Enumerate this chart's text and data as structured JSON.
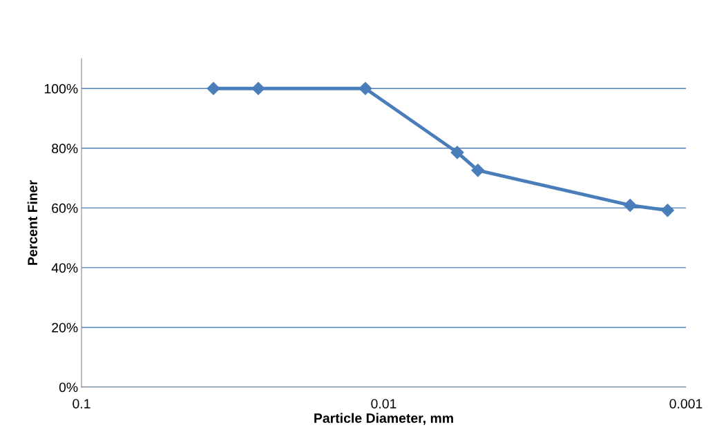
{
  "chart_data": {
    "type": "line",
    "xlabel": "Particle Diameter, mm",
    "ylabel": "Percent Finer",
    "x": [
      0.0366,
      0.026,
      0.0115,
      0.00571,
      0.00488,
      0.00153,
      0.00115
    ],
    "series": [
      {
        "color": "#4a7ebb",
        "values": [
          100,
          100,
          100,
          78.6,
          72.6,
          60.9,
          59.2
        ]
      }
    ],
    "log": "x",
    "xlim": [
      0.1,
      0.001
    ],
    "xticks": [
      0.1,
      0.01,
      0.001
    ],
    "ylim": [
      0,
      110
    ],
    "yticks": [
      {
        "value": 0,
        "label": "0%"
      },
      {
        "value": 20,
        "label": "20%"
      },
      {
        "value": 40,
        "label": "40%"
      },
      {
        "value": 60,
        "label": "60%"
      },
      {
        "value": 80,
        "label": "80%"
      },
      {
        "value": 100,
        "label": "100%"
      }
    ],
    "grid": "y",
    "marker": "diamond",
    "line_style": "solid",
    "legend": false
  }
}
